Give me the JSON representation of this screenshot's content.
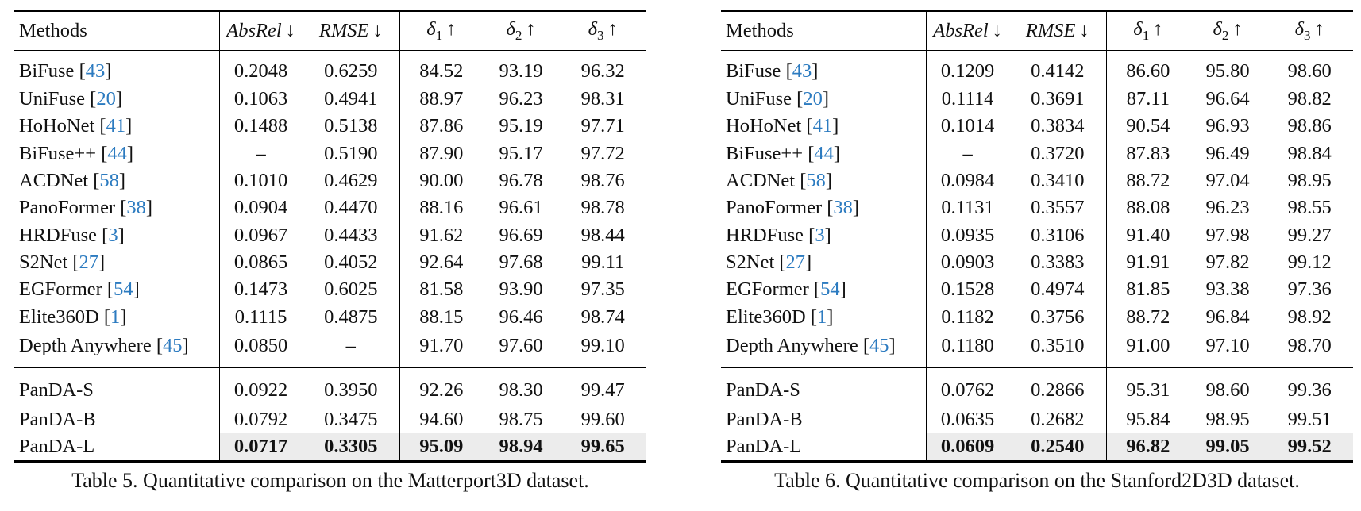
{
  "tables": [
    {
      "caption": "Table 5. Quantitative comparison on the Matterport3D dataset.",
      "headers": {
        "method": "Methods",
        "absrel": "AbsRel",
        "absrel_arrow": "↓",
        "rmse": "RMSE",
        "rmse_arrow": "↓",
        "d1": "δ",
        "d1_sub": "1",
        "d1_arrow": "↑",
        "d2": "δ",
        "d2_sub": "2",
        "d2_arrow": "↑",
        "d3": "δ",
        "d3_sub": "3",
        "d3_arrow": "↑"
      },
      "rows": [
        {
          "name": "BiFuse",
          "ref": "43",
          "absrel": "0.2048",
          "rmse": "0.6259",
          "d1": "84.52",
          "d2": "93.19",
          "d3": "96.32"
        },
        {
          "name": "UniFuse",
          "ref": "20",
          "absrel": "0.1063",
          "rmse": "0.4941",
          "d1": "88.97",
          "d2": "96.23",
          "d3": "98.31"
        },
        {
          "name": "HoHoNet",
          "ref": "41",
          "absrel": "0.1488",
          "rmse": "0.5138",
          "d1": "87.86",
          "d2": "95.19",
          "d3": "97.71"
        },
        {
          "name": "BiFuse++",
          "ref": "44",
          "absrel": "–",
          "rmse": "0.5190",
          "d1": "87.90",
          "d2": "95.17",
          "d3": "97.72"
        },
        {
          "name": "ACDNet",
          "ref": "58",
          "absrel": "0.1010",
          "rmse": "0.4629",
          "d1": "90.00",
          "d2": "96.78",
          "d3": "98.76"
        },
        {
          "name": "PanoFormer",
          "ref": "38",
          "absrel": "0.0904",
          "rmse": "0.4470",
          "d1": "88.16",
          "d2": "96.61",
          "d3": "98.78"
        },
        {
          "name": "HRDFuse",
          "ref": "3",
          "absrel": "0.0967",
          "rmse": "0.4433",
          "d1": "91.62",
          "d2": "96.69",
          "d3": "98.44"
        },
        {
          "name": "S2Net",
          "ref": "27",
          "absrel": "0.0865",
          "rmse": "0.4052",
          "d1": "92.64",
          "d2": "97.68",
          "d3": "99.11"
        },
        {
          "name": "EGFormer",
          "ref": "54",
          "absrel": "0.1473",
          "rmse": "0.6025",
          "d1": "81.58",
          "d2": "93.90",
          "d3": "97.35"
        },
        {
          "name": "Elite360D",
          "ref": "1",
          "absrel": "0.1115",
          "rmse": "0.4875",
          "d1": "88.15",
          "d2": "96.46",
          "d3": "98.74"
        },
        {
          "name": "Depth Anywhere",
          "ref": "45",
          "absrel": "0.0850",
          "rmse": "–",
          "d1": "91.70",
          "d2": "97.60",
          "d3": "99.10"
        }
      ],
      "ours": [
        {
          "name": "PanDA-S",
          "absrel": "0.0922",
          "rmse": "0.3950",
          "d1": "92.26",
          "d2": "98.30",
          "d3": "99.47"
        },
        {
          "name": "PanDA-B",
          "absrel": "0.0792",
          "rmse": "0.3475",
          "d1": "94.60",
          "d2": "98.75",
          "d3": "99.60"
        },
        {
          "name": "PanDA-L",
          "absrel": "0.0717",
          "rmse": "0.3305",
          "d1": "95.09",
          "d2": "98.94",
          "d3": "99.65"
        }
      ]
    },
    {
      "caption": "Table 6. Quantitative comparison on the Stanford2D3D dataset.",
      "headers": {
        "method": "Methods",
        "absrel": "AbsRel",
        "absrel_arrow": "↓",
        "rmse": "RMSE",
        "rmse_arrow": "↓",
        "d1": "δ",
        "d1_sub": "1",
        "d1_arrow": "↑",
        "d2": "δ",
        "d2_sub": "2",
        "d2_arrow": "↑",
        "d3": "δ",
        "d3_sub": "3",
        "d3_arrow": "↑"
      },
      "rows": [
        {
          "name": "BiFuse",
          "ref": "43",
          "absrel": "0.1209",
          "rmse": "0.4142",
          "d1": "86.60",
          "d2": "95.80",
          "d3": "98.60"
        },
        {
          "name": "UniFuse",
          "ref": "20",
          "absrel": "0.1114",
          "rmse": "0.3691",
          "d1": "87.11",
          "d2": "96.64",
          "d3": "98.82"
        },
        {
          "name": "HoHoNet",
          "ref": "41",
          "absrel": "0.1014",
          "rmse": "0.3834",
          "d1": "90.54",
          "d2": "96.93",
          "d3": "98.86"
        },
        {
          "name": "BiFuse++",
          "ref": "44",
          "absrel": "–",
          "rmse": "0.3720",
          "d1": "87.83",
          "d2": "96.49",
          "d3": "98.84"
        },
        {
          "name": "ACDNet",
          "ref": "58",
          "absrel": "0.0984",
          "rmse": "0.3410",
          "d1": "88.72",
          "d2": "97.04",
          "d3": "98.95"
        },
        {
          "name": "PanoFormer",
          "ref": "38",
          "absrel": "0.1131",
          "rmse": "0.3557",
          "d1": "88.08",
          "d2": "96.23",
          "d3": "98.55"
        },
        {
          "name": "HRDFuse",
          "ref": "3",
          "absrel": "0.0935",
          "rmse": "0.3106",
          "d1": "91.40",
          "d2": "97.98",
          "d3": "99.27"
        },
        {
          "name": "S2Net",
          "ref": "27",
          "absrel": "0.0903",
          "rmse": "0.3383",
          "d1": "91.91",
          "d2": "97.82",
          "d3": "99.12"
        },
        {
          "name": "EGFormer",
          "ref": "54",
          "absrel": "0.1528",
          "rmse": "0.4974",
          "d1": "81.85",
          "d2": "93.38",
          "d3": "97.36"
        },
        {
          "name": "Elite360D",
          "ref": "1",
          "absrel": "0.1182",
          "rmse": "0.3756",
          "d1": "88.72",
          "d2": "96.84",
          "d3": "98.92"
        },
        {
          "name": "Depth Anywhere",
          "ref": "45",
          "absrel": "0.1180",
          "rmse": "0.3510",
          "d1": "91.00",
          "d2": "97.10",
          "d3": "98.70"
        }
      ],
      "ours": [
        {
          "name": "PanDA-S",
          "absrel": "0.0762",
          "rmse": "0.2866",
          "d1": "95.31",
          "d2": "98.60",
          "d3": "99.36"
        },
        {
          "name": "PanDA-B",
          "absrel": "0.0635",
          "rmse": "0.2682",
          "d1": "95.84",
          "d2": "98.95",
          "d3": "99.51"
        },
        {
          "name": "PanDA-L",
          "absrel": "0.0609",
          "rmse": "0.2540",
          "d1": "96.82",
          "d2": "99.05",
          "d3": "99.52"
        }
      ]
    }
  ]
}
